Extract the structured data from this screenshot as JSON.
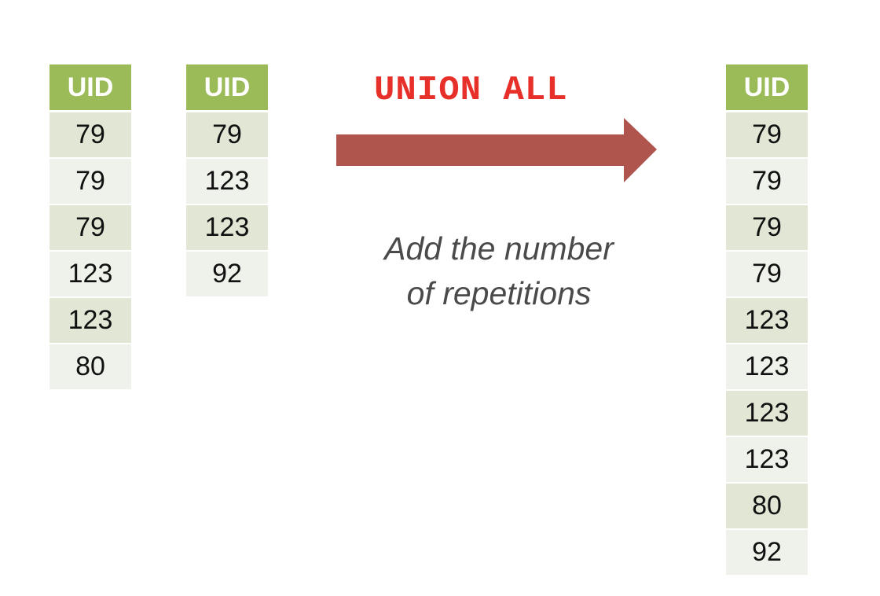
{
  "tables": [
    {
      "header": "UID",
      "rows": [
        "79",
        "79",
        "79",
        "123",
        "123",
        "80"
      ]
    },
    {
      "header": "UID",
      "rows": [
        "79",
        "123",
        "123",
        "92"
      ]
    },
    {
      "header": "UID",
      "rows": [
        "79",
        "79",
        "79",
        "79",
        "123",
        "123",
        "123",
        "123",
        "80",
        "92"
      ]
    }
  ],
  "operation": "UNION ALL",
  "caption": {
    "line1": "Add the number",
    "line2": "of repetitions"
  },
  "colors": {
    "header_bg": "#9bbb59",
    "row_dark": "#e1e6d5",
    "row_light": "#eff2ea",
    "operation_text": "#e8302a",
    "arrow": "#b0554e",
    "caption_text": "#4a4a4a"
  }
}
